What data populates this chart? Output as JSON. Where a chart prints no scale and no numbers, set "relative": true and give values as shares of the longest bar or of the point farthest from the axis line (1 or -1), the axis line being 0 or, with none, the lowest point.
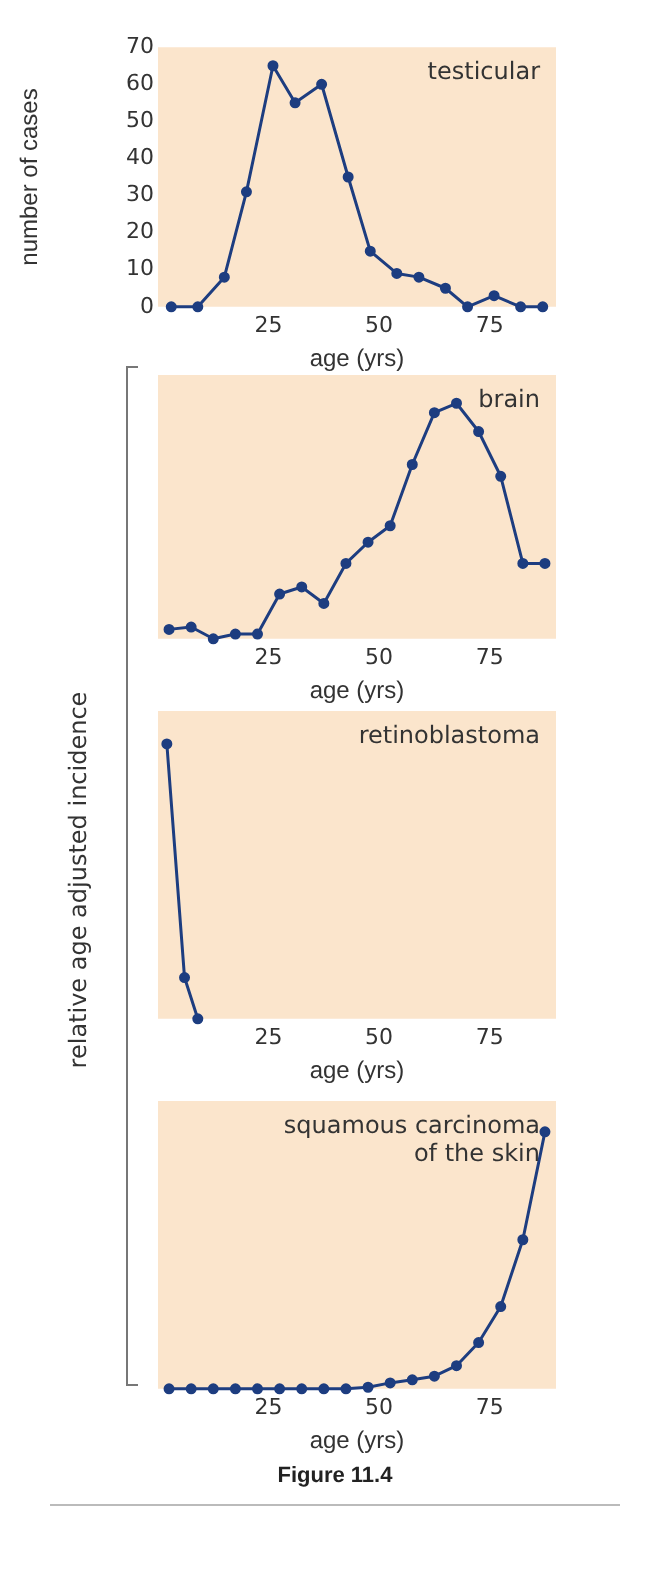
{
  "chart_data": [
    {
      "type": "line",
      "title": "testicular",
      "xlabel": "age (yrs)",
      "ylabel": "number of cases",
      "xlim": [
        0,
        90
      ],
      "xticks": [
        25,
        50,
        75
      ],
      "ylim": [
        0,
        70
      ],
      "yticks": [
        0,
        10,
        20,
        30,
        40,
        50,
        60,
        70
      ],
      "grid": false,
      "legend": false,
      "marker": "circle",
      "x": [
        3,
        9,
        15,
        20,
        26,
        31,
        37,
        43,
        48,
        54,
        59,
        65,
        70,
        76,
        82,
        87
      ],
      "series": [
        {
          "color": "#1d3d80",
          "values": [
            0,
            0,
            8,
            31,
            65,
            55,
            60,
            35,
            15,
            9,
            8,
            5,
            0,
            3,
            0,
            0
          ]
        }
      ]
    },
    {
      "type": "line",
      "title": "brain",
      "xlabel": "age (yrs)",
      "ylabel": "relative age adjusted incidence",
      "relative": true,
      "tick_labels": "x",
      "xlim": [
        0,
        90
      ],
      "xticks": [
        25,
        50,
        75
      ],
      "grid": false,
      "legend": false,
      "marker": "circle",
      "x": [
        2.5,
        7.5,
        12.5,
        17.5,
        22.5,
        27.5,
        32.5,
        37.5,
        42.5,
        47.5,
        52.5,
        57.5,
        62.5,
        67.5,
        72.5,
        77.5,
        82.5,
        87.5
      ],
      "color": "#1d3d80",
      "values": [
        0.04,
        0.05,
        0,
        0.02,
        0.02,
        0.19,
        0.22,
        0.15,
        0.32,
        0.41,
        0.48,
        0.74,
        0.96,
        1,
        0.88,
        0.69,
        0.32,
        0.32
      ]
    },
    {
      "type": "line",
      "title": "retinoblastoma",
      "xlabel": "age (yrs)",
      "relative": true,
      "tick_labels": "x",
      "xlim": [
        0,
        90
      ],
      "xticks": [
        25,
        50,
        75
      ],
      "grid": false,
      "legend": false,
      "marker": "circle",
      "x": [
        2,
        6,
        9
      ],
      "color": "#1d3d80",
      "values": [
        1,
        0.15,
        0
      ]
    },
    {
      "type": "line",
      "title": "squamous carcinoma of the skin",
      "xlabel": "age (yrs)",
      "relative": true,
      "tick_labels": "x",
      "xlim": [
        0,
        90
      ],
      "xticks": [
        25,
        50,
        75
      ],
      "grid": false,
      "legend": false,
      "marker": "circle",
      "x": [
        2.5,
        7.5,
        12.5,
        17.5,
        22.5,
        27.5,
        32.5,
        37.5,
        42.5,
        47.5,
        52.5,
        57.5,
        62.5,
        67.5,
        72.5,
        77.5,
        82.5,
        87.5
      ],
      "color": "#1d3d80",
      "values": [
        0,
        0,
        0,
        0,
        0,
        0,
        0,
        0,
        0,
        0.006,
        0.023,
        0.035,
        0.049,
        0.09,
        0.18,
        0.32,
        0.58,
        1
      ],
      "annotations": [
        "Figure 11.4"
      ]
    }
  ]
}
